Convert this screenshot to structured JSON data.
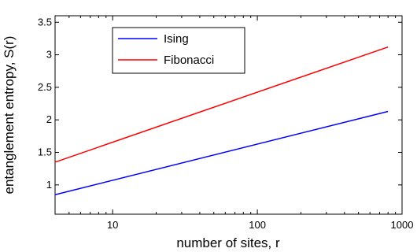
{
  "chart_data": {
    "type": "line",
    "title": "",
    "xlabel": "number of sites, r",
    "ylabel": "entanglement entropy, S(r)",
    "x_scale": "log",
    "xlim": [
      4,
      1000
    ],
    "ylim": [
      0.55,
      3.6
    ],
    "x_ticks": [
      10,
      100,
      1000
    ],
    "x_tick_labels": [
      "10",
      "100",
      "1000"
    ],
    "y_ticks": [
      1,
      1.5,
      2,
      2.5,
      3,
      3.5
    ],
    "y_tick_labels": [
      "1",
      "1.5",
      "2",
      "2.5",
      "3",
      "3.5"
    ],
    "grid": false,
    "legend_position": "top-left",
    "series": [
      {
        "name": "Ising",
        "color": "#0000ff",
        "x": [
          4,
          800
        ],
        "y": [
          0.85,
          2.13
        ]
      },
      {
        "name": "Fibonacci",
        "color": "#ff0000",
        "x": [
          4,
          800
        ],
        "y": [
          1.35,
          3.12
        ]
      }
    ]
  }
}
